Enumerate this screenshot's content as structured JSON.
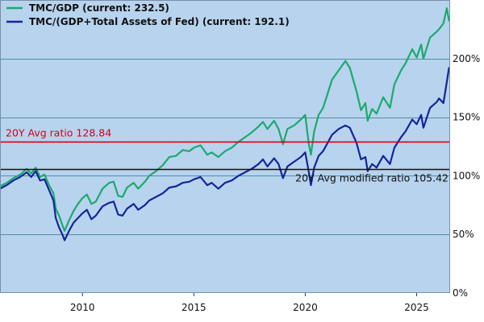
{
  "chart_data": {
    "type": "line",
    "title": "",
    "xlabel": "",
    "ylabel": "",
    "xlim": [
      2006.3,
      2026.5
    ],
    "ylim": [
      0,
      250
    ],
    "x_ticks": [
      {
        "value": 2010,
        "label": "2010"
      },
      {
        "value": 2015,
        "label": "2015"
      },
      {
        "value": 2020,
        "label": "2020"
      },
      {
        "value": 2025,
        "label": "2025"
      }
    ],
    "y_ticks": [
      {
        "value": 0,
        "label": "0%"
      },
      {
        "value": 50,
        "label": "50%"
      },
      {
        "value": 100,
        "label": "100%"
      },
      {
        "value": 150,
        "label": "150%"
      },
      {
        "value": 200,
        "label": "200%"
      }
    ],
    "grid": "horizontal",
    "legend_position": "top-left",
    "background_color": "#b8d3ee",
    "series": [
      {
        "name": "TMC/GDP (current: 232.5)",
        "color": "#1aaa6e",
        "points": [
          [
            2006.3,
            91
          ],
          [
            2006.6,
            94
          ],
          [
            2006.9,
            98
          ],
          [
            2007.2,
            101
          ],
          [
            2007.5,
            106
          ],
          [
            2007.7,
            102
          ],
          [
            2007.9,
            107
          ],
          [
            2008.1,
            99
          ],
          [
            2008.3,
            101
          ],
          [
            2008.5,
            92
          ],
          [
            2008.7,
            85
          ],
          [
            2008.8,
            72
          ],
          [
            2008.95,
            66
          ],
          [
            2009.1,
            58
          ],
          [
            2009.2,
            53
          ],
          [
            2009.4,
            62
          ],
          [
            2009.6,
            70
          ],
          [
            2009.8,
            76
          ],
          [
            2010.0,
            81
          ],
          [
            2010.2,
            84
          ],
          [
            2010.4,
            76
          ],
          [
            2010.6,
            78
          ],
          [
            2010.9,
            89
          ],
          [
            2011.2,
            94
          ],
          [
            2011.4,
            95
          ],
          [
            2011.6,
            83
          ],
          [
            2011.8,
            82
          ],
          [
            2012.0,
            90
          ],
          [
            2012.3,
            94
          ],
          [
            2012.5,
            89
          ],
          [
            2012.8,
            95
          ],
          [
            2013.0,
            100
          ],
          [
            2013.3,
            104
          ],
          [
            2013.6,
            109
          ],
          [
            2013.9,
            116
          ],
          [
            2014.2,
            117
          ],
          [
            2014.5,
            122
          ],
          [
            2014.8,
            121
          ],
          [
            2015.0,
            124
          ],
          [
            2015.3,
            126
          ],
          [
            2015.6,
            118
          ],
          [
            2015.8,
            120
          ],
          [
            2016.1,
            116
          ],
          [
            2016.4,
            121
          ],
          [
            2016.7,
            124
          ],
          [
            2017.0,
            129
          ],
          [
            2017.3,
            133
          ],
          [
            2017.6,
            137
          ],
          [
            2017.9,
            142
          ],
          [
            2018.1,
            146
          ],
          [
            2018.3,
            140
          ],
          [
            2018.6,
            147
          ],
          [
            2018.8,
            140
          ],
          [
            2019.0,
            127
          ],
          [
            2019.2,
            140
          ],
          [
            2019.5,
            143
          ],
          [
            2019.8,
            148
          ],
          [
            2020.0,
            152
          ],
          [
            2020.15,
            128
          ],
          [
            2020.25,
            118
          ],
          [
            2020.4,
            138
          ],
          [
            2020.6,
            152
          ],
          [
            2020.8,
            158
          ],
          [
            2021.0,
            170
          ],
          [
            2021.2,
            182
          ],
          [
            2021.5,
            190
          ],
          [
            2021.8,
            198
          ],
          [
            2022.0,
            192
          ],
          [
            2022.3,
            172
          ],
          [
            2022.5,
            156
          ],
          [
            2022.7,
            162
          ],
          [
            2022.8,
            147
          ],
          [
            2023.0,
            157
          ],
          [
            2023.2,
            153
          ],
          [
            2023.5,
            167
          ],
          [
            2023.8,
            158
          ],
          [
            2024.0,
            178
          ],
          [
            2024.3,
            190
          ],
          [
            2024.5,
            196
          ],
          [
            2024.8,
            208
          ],
          [
            2025.0,
            201
          ],
          [
            2025.2,
            212
          ],
          [
            2025.3,
            200
          ],
          [
            2025.6,
            218
          ],
          [
            2025.9,
            223
          ],
          [
            2026.0,
            225
          ],
          [
            2026.2,
            230
          ],
          [
            2026.35,
            243
          ],
          [
            2026.45,
            232.5
          ]
        ]
      },
      {
        "name": "TMC/(GDP+Total Assets of Fed) (current: 192.1)",
        "color": "#14259a",
        "points": [
          [
            2006.3,
            89
          ],
          [
            2006.6,
            92
          ],
          [
            2006.9,
            96
          ],
          [
            2007.2,
            99
          ],
          [
            2007.5,
            103
          ],
          [
            2007.7,
            99
          ],
          [
            2007.9,
            104
          ],
          [
            2008.1,
            96
          ],
          [
            2008.3,
            97
          ],
          [
            2008.5,
            88
          ],
          [
            2008.7,
            79
          ],
          [
            2008.8,
            64
          ],
          [
            2008.95,
            56
          ],
          [
            2009.1,
            50
          ],
          [
            2009.2,
            45
          ],
          [
            2009.4,
            53
          ],
          [
            2009.6,
            60
          ],
          [
            2009.8,
            64
          ],
          [
            2010.0,
            68
          ],
          [
            2010.2,
            71
          ],
          [
            2010.4,
            63
          ],
          [
            2010.6,
            66
          ],
          [
            2010.9,
            74
          ],
          [
            2011.2,
            77
          ],
          [
            2011.4,
            78
          ],
          [
            2011.6,
            67
          ],
          [
            2011.8,
            66
          ],
          [
            2012.0,
            72
          ],
          [
            2012.3,
            76
          ],
          [
            2012.5,
            71
          ],
          [
            2012.8,
            75
          ],
          [
            2013.0,
            79
          ],
          [
            2013.3,
            82
          ],
          [
            2013.6,
            85
          ],
          [
            2013.9,
            90
          ],
          [
            2014.2,
            91
          ],
          [
            2014.5,
            94
          ],
          [
            2014.8,
            95
          ],
          [
            2015.0,
            97
          ],
          [
            2015.3,
            99
          ],
          [
            2015.6,
            92
          ],
          [
            2015.8,
            94
          ],
          [
            2016.1,
            89
          ],
          [
            2016.4,
            94
          ],
          [
            2016.7,
            96
          ],
          [
            2017.0,
            100
          ],
          [
            2017.3,
            103
          ],
          [
            2017.6,
            106
          ],
          [
            2017.9,
            110
          ],
          [
            2018.1,
            114
          ],
          [
            2018.3,
            108
          ],
          [
            2018.6,
            115
          ],
          [
            2018.8,
            110
          ],
          [
            2019.0,
            98
          ],
          [
            2019.2,
            108
          ],
          [
            2019.5,
            112
          ],
          [
            2019.8,
            116
          ],
          [
            2020.0,
            120
          ],
          [
            2020.15,
            104
          ],
          [
            2020.25,
            92
          ],
          [
            2020.4,
            107
          ],
          [
            2020.6,
            117
          ],
          [
            2020.8,
            121
          ],
          [
            2021.0,
            128
          ],
          [
            2021.2,
            135
          ],
          [
            2021.5,
            140
          ],
          [
            2021.8,
            143
          ],
          [
            2022.0,
            141
          ],
          [
            2022.3,
            128
          ],
          [
            2022.5,
            114
          ],
          [
            2022.7,
            116
          ],
          [
            2022.8,
            104
          ],
          [
            2023.0,
            110
          ],
          [
            2023.2,
            107
          ],
          [
            2023.5,
            117
          ],
          [
            2023.8,
            110
          ],
          [
            2024.0,
            124
          ],
          [
            2024.3,
            133
          ],
          [
            2024.5,
            138
          ],
          [
            2024.8,
            148
          ],
          [
            2025.0,
            144
          ],
          [
            2025.2,
            152
          ],
          [
            2025.3,
            141
          ],
          [
            2025.6,
            158
          ],
          [
            2025.9,
            163
          ],
          [
            2026.0,
            166
          ],
          [
            2026.2,
            162
          ],
          [
            2026.3,
            174
          ],
          [
            2026.45,
            192.1
          ]
        ]
      }
    ],
    "reference_lines": [
      {
        "label": "20Y Avg ratio 128.84",
        "value": 128.84,
        "color": "#d0021b",
        "label_position": "above-left"
      },
      {
        "label": "20Y Avg modified ratio 105.42",
        "value": 105.42,
        "color": "#111111",
        "label_position": "below-right"
      }
    ]
  }
}
